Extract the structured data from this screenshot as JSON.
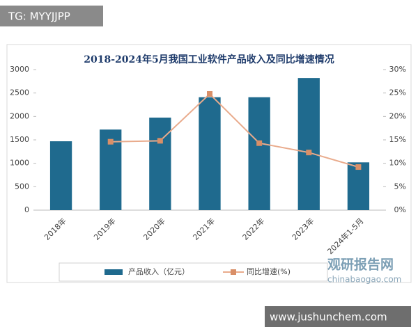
{
  "chart_data": {
    "type": "bar-line",
    "title": "2018-2024年5月我国工业软件产品收入及同比增速情况",
    "categories": [
      "2018年",
      "2019年",
      "2020年",
      "2021年",
      "2022年",
      "2023年",
      "2024年1-5月"
    ],
    "series": [
      {
        "name": "产品收入（亿元）",
        "type": "bar",
        "color": "#1f6a8e",
        "values": [
          1470,
          1720,
          1975,
          2410,
          2410,
          2820,
          1020
        ]
      },
      {
        "name": "同比增速(%)",
        "type": "line",
        "axis": "y2",
        "color": "#e9ab8c",
        "marker_color": "#d98f68",
        "values": [
          null,
          14.6,
          14.8,
          24.8,
          14.3,
          12.3,
          9.2
        ]
      }
    ],
    "ylim": [
      0,
      3000
    ],
    "yticks": [
      0,
      500,
      1000,
      1500,
      2000,
      2500,
      3000
    ],
    "y2lim": [
      0,
      30
    ],
    "y2ticks": [
      {
        "value": 0,
        "label": "0%"
      },
      {
        "value": 5,
        "label": "5%"
      },
      {
        "value": 10,
        "label": "10%"
      },
      {
        "value": 15,
        "label": "15%"
      },
      {
        "value": 20,
        "label": "20%"
      },
      {
        "value": 25,
        "label": "25%"
      },
      {
        "value": 30,
        "label": "30%"
      }
    ],
    "legend": "bottom"
  },
  "watermarks": {
    "top": "TG: MYYJJPP",
    "logo": "观研报告网",
    "logo_url": "chinabaogao.com",
    "bottom": "www.jushunchem.com"
  }
}
